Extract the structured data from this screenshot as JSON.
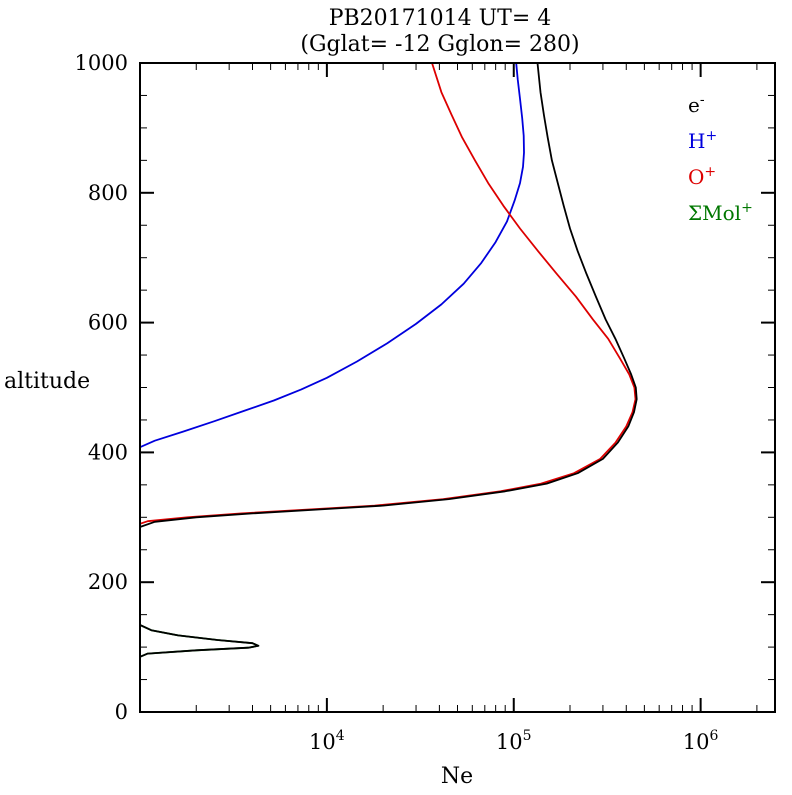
{
  "title": {
    "line1": "PB20171014   UT=  4",
    "line2": "(Gglat= -12   Gglon=  280)"
  },
  "chart_data": {
    "type": "line",
    "title": "PB20171014  UT= 4",
    "subtitle": "(Gglat= -12  Gglon= 280)",
    "xlabel": "Ne",
    "ylabel": "altitude",
    "x_scale": "log",
    "y_scale": "linear",
    "xlim": [
      1000,
      2500000
    ],
    "ylim": [
      0,
      1000
    ],
    "x_major_tick_exponents": [
      4,
      5,
      6
    ],
    "y_major_ticks": [
      0,
      200,
      400,
      600,
      800,
      1000
    ],
    "y_minor_step": 50,
    "grid": false,
    "legend_position": "upper right inside",
    "legend": [
      {
        "label": "e",
        "sup": "-",
        "color": "#000000"
      },
      {
        "label": "H",
        "sup": "+",
        "color": "#0000dd"
      },
      {
        "label": "O",
        "sup": "+",
        "color": "#dd0000"
      },
      {
        "label": "ΣMol",
        "sup": "+",
        "color": "#007700"
      }
    ],
    "series": [
      {
        "name": "Mol+",
        "color": "#007700",
        "points": [
          [
            1000,
            60
          ],
          [
            1000,
            85
          ],
          [
            1100,
            90
          ],
          [
            2000,
            95
          ],
          [
            3800,
            99
          ],
          [
            4300,
            102
          ],
          [
            4000,
            106
          ],
          [
            2600,
            111
          ],
          [
            1600,
            118
          ],
          [
            1150,
            126
          ],
          [
            1000,
            134
          ],
          [
            1000,
            200
          ],
          [
            1000,
            260
          ],
          [
            900,
            290
          ]
        ]
      },
      {
        "name": "H+",
        "color": "#0000dd",
        "points": [
          [
            1000,
            408
          ],
          [
            1200,
            418
          ],
          [
            1700,
            432
          ],
          [
            2500,
            448
          ],
          [
            3600,
            464
          ],
          [
            5200,
            480
          ],
          [
            7300,
            497
          ],
          [
            10000,
            515
          ],
          [
            14500,
            540
          ],
          [
            21000,
            568
          ],
          [
            30000,
            598
          ],
          [
            41000,
            628
          ],
          [
            54000,
            660
          ],
          [
            67000,
            692
          ],
          [
            80000,
            724
          ],
          [
            92000,
            756
          ],
          [
            101000,
            788
          ],
          [
            108000,
            815
          ],
          [
            112000,
            840
          ],
          [
            113500,
            862
          ],
          [
            113000,
            888
          ],
          [
            111000,
            915
          ],
          [
            108000,
            945
          ],
          [
            105000,
            975
          ],
          [
            103000,
            1000
          ]
        ]
      },
      {
        "name": "O+",
        "color": "#dd0000",
        "points": [
          [
            1000,
            290
          ],
          [
            1100,
            294
          ],
          [
            1800,
            300
          ],
          [
            3500,
            306
          ],
          [
            8000,
            312
          ],
          [
            18000,
            318
          ],
          [
            42000,
            328
          ],
          [
            85000,
            340
          ],
          [
            140000,
            352
          ],
          [
            210000,
            368
          ],
          [
            290000,
            390
          ],
          [
            350000,
            415
          ],
          [
            400000,
            440
          ],
          [
            432000,
            462
          ],
          [
            448000,
            482
          ],
          [
            442000,
            500
          ],
          [
            415000,
            520
          ],
          [
            370000,
            545
          ],
          [
            320000,
            575
          ],
          [
            265000,
            605
          ],
          [
            215000,
            640
          ],
          [
            170000,
            675
          ],
          [
            135000,
            710
          ],
          [
            108000,
            745
          ],
          [
            88000,
            780
          ],
          [
            73000,
            815
          ],
          [
            62000,
            850
          ],
          [
            53000,
            885
          ],
          [
            46500,
            920
          ],
          [
            41000,
            955
          ],
          [
            36500,
            1000
          ]
        ]
      },
      {
        "name": "e-",
        "color": "#000000",
        "points": [
          [
            1000,
            60
          ],
          [
            1000,
            85
          ],
          [
            1100,
            90
          ],
          [
            2000,
            95
          ],
          [
            3800,
            99
          ],
          [
            4300,
            102
          ],
          [
            4000,
            106
          ],
          [
            2600,
            111
          ],
          [
            1600,
            118
          ],
          [
            1150,
            126
          ],
          [
            1000,
            134
          ],
          [
            1000,
            200
          ],
          [
            1000,
            285
          ],
          [
            1200,
            293
          ],
          [
            2000,
            300
          ],
          [
            4000,
            306
          ],
          [
            9000,
            312
          ],
          [
            20000,
            318
          ],
          [
            45000,
            328
          ],
          [
            90000,
            340
          ],
          [
            150000,
            352
          ],
          [
            220000,
            368
          ],
          [
            300000,
            390
          ],
          [
            360000,
            415
          ],
          [
            410000,
            440
          ],
          [
            440000,
            462
          ],
          [
            455000,
            482
          ],
          [
            450000,
            500
          ],
          [
            425000,
            520
          ],
          [
            390000,
            545
          ],
          [
            350000,
            575
          ],
          [
            310000,
            605
          ],
          [
            275000,
            640
          ],
          [
            245000,
            675
          ],
          [
            220000,
            710
          ],
          [
            200000,
            745
          ],
          [
            185000,
            780
          ],
          [
            172000,
            815
          ],
          [
            160000,
            850
          ],
          [
            152000,
            885
          ],
          [
            145000,
            920
          ],
          [
            139000,
            955
          ],
          [
            134000,
            1000
          ]
        ]
      }
    ]
  }
}
